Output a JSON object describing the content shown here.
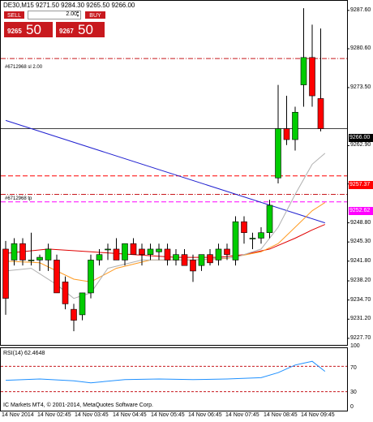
{
  "header": {
    "title": "DE30,M15  9271.50 9284.30 9265.50 9266.00"
  },
  "trade_panel": {
    "sell_label": "SELL",
    "buy_label": "BUY",
    "lot_value": "2.00",
    "sell_price_small": "9265",
    "sell_price_big": "50",
    "buy_price_small": "9267",
    "buy_price_big": "50",
    "button_color": "#c8191e"
  },
  "orders": {
    "sl_label": "#6712968 sl 2.00",
    "tp_label": "#6712968 tp"
  },
  "price_tags": {
    "current": "9266.00",
    "sl_level": "9257.37",
    "tp_level": "9252.62"
  },
  "chart_data": {
    "type": "candlestick",
    "title": "DE30,M15  9271.50 9284.30 9265.50 9266.00",
    "xlabel": "",
    "ylabel": "",
    "ylim": [
      9226.5,
      9289.5
    ],
    "grid": false,
    "bull_color": "#00cc00",
    "bear_color": "#ff0000",
    "y_ticks": [
      "9287.60",
      "9280.60",
      "9273.50",
      "9266.00",
      "9262.90",
      "9255.90",
      "9248.80",
      "9245.30",
      "9241.80",
      "9238.20",
      "9234.70",
      "9231.20",
      "9227.70"
    ],
    "x_ticks": [
      "14 Nov 2014",
      "14 Nov 02:45",
      "14 Nov 03:45",
      "14 Nov 04:45",
      "14 Nov 05:45",
      "14 Nov 06:45",
      "14 Nov 07:45",
      "14 Nov 08:45",
      "14 Nov 09:45"
    ],
    "candles": [
      {
        "o": 9244.0,
        "h": 9245.5,
        "l": 9232.0,
        "c": 9235.0
      },
      {
        "o": 9242.0,
        "h": 9246.0,
        "l": 9241.0,
        "c": 9245.0
      },
      {
        "o": 9245.0,
        "h": 9246.0,
        "l": 9241.0,
        "c": 9242.0
      },
      {
        "o": 9242.0,
        "h": 9247.0,
        "l": 9241.0,
        "c": 9242.0
      },
      {
        "o": 9242.0,
        "h": 9243.0,
        "l": 9240.0,
        "c": 9242.5
      },
      {
        "o": 9242.0,
        "h": 9245.0,
        "l": 9240.0,
        "c": 9244.0
      },
      {
        "o": 9242.0,
        "h": 9243.0,
        "l": 9236.0,
        "c": 9236.0
      },
      {
        "o": 9238.0,
        "h": 9239.0,
        "l": 9233.0,
        "c": 9234.0
      },
      {
        "o": 9233.0,
        "h": 9234.0,
        "l": 9229.0,
        "c": 9231.0
      },
      {
        "o": 9232.0,
        "h": 9236.0,
        "l": 9231.0,
        "c": 9236.0
      },
      {
        "o": 9236.0,
        "h": 9243.0,
        "l": 9235.0,
        "c": 9242.0
      },
      {
        "o": 9242.0,
        "h": 9244.0,
        "l": 9241.0,
        "c": 9243.0
      },
      {
        "o": 9244.0,
        "h": 9245.0,
        "l": 9242.0,
        "c": 9244.0
      },
      {
        "o": 9244.0,
        "h": 9246.0,
        "l": 9242.0,
        "c": 9242.0
      },
      {
        "o": 9242.0,
        "h": 9245.0,
        "l": 9241.0,
        "c": 9245.0
      },
      {
        "o": 9245.0,
        "h": 9246.0,
        "l": 9243.0,
        "c": 9243.0
      },
      {
        "o": 9244.0,
        "h": 9245.0,
        "l": 9241.0,
        "c": 9243.0
      },
      {
        "o": 9243.0,
        "h": 9245.0,
        "l": 9242.0,
        "c": 9244.0
      },
      {
        "o": 9243.5,
        "h": 9245.0,
        "l": 9242.0,
        "c": 9244.0
      },
      {
        "o": 9244.0,
        "h": 9245.0,
        "l": 9241.0,
        "c": 9242.0
      },
      {
        "o": 9242.0,
        "h": 9244.0,
        "l": 9241.0,
        "c": 9243.0
      },
      {
        "o": 9243.0,
        "h": 9244.0,
        "l": 9241.0,
        "c": 9241.0
      },
      {
        "o": 9242.0,
        "h": 9243.0,
        "l": 9238.0,
        "c": 9240.0
      },
      {
        "o": 9241.0,
        "h": 9243.0,
        "l": 9240.0,
        "c": 9243.0
      },
      {
        "o": 9243.0,
        "h": 9244.0,
        "l": 9241.0,
        "c": 9241.5
      },
      {
        "o": 9242.0,
        "h": 9245.0,
        "l": 9241.0,
        "c": 9244.0
      },
      {
        "o": 9244.0,
        "h": 9245.0,
        "l": 9242.0,
        "c": 9243.0
      },
      {
        "o": 9242.0,
        "h": 9250.0,
        "l": 9241.0,
        "c": 9249.0
      },
      {
        "o": 9249.0,
        "h": 9250.0,
        "l": 9245.0,
        "c": 9247.0
      },
      {
        "o": 9246.0,
        "h": 9247.0,
        "l": 9244.0,
        "c": 9246.0
      },
      {
        "o": 9246.0,
        "h": 9248.0,
        "l": 9245.0,
        "c": 9247.0
      },
      {
        "o": 9247.0,
        "h": 9253.0,
        "l": 9246.0,
        "c": 9252.0
      },
      {
        "o": 9257.0,
        "h": 9274.0,
        "l": 9256.0,
        "c": 9266.0
      },
      {
        "o": 9266.0,
        "h": 9272.0,
        "l": 9263.0,
        "c": 9264.0
      },
      {
        "o": 9264.0,
        "h": 9270.0,
        "l": 9262.0,
        "c": 9269.0
      },
      {
        "o": 9274.0,
        "h": 9288.0,
        "l": 9270.0,
        "c": 9279.0
      },
      {
        "o": 9279.0,
        "h": 9285.0,
        "l": 9270.0,
        "c": 9272.0
      },
      {
        "o": 9271.5,
        "h": 9284.3,
        "l": 9265.5,
        "c": 9266.0
      }
    ],
    "lines": [
      {
        "name": "blue-ma",
        "color": "#2020d0",
        "points": [
          [
            0,
            9267.5
          ],
          [
            37.5,
            9248.8
          ]
        ]
      },
      {
        "name": "red-ma",
        "color": "#e00000",
        "points": [
          [
            0,
            9243.2
          ],
          [
            5,
            9244.0
          ],
          [
            10,
            9243.5
          ],
          [
            15,
            9243.0
          ],
          [
            20,
            9242.5
          ],
          [
            25,
            9242.5
          ],
          [
            28,
            9243.0
          ],
          [
            31,
            9244.0
          ],
          [
            34,
            9246.0
          ],
          [
            36,
            9247.5
          ],
          [
            37.5,
            9248.5
          ]
        ]
      },
      {
        "name": "orange-ma",
        "color": "#ff9a20",
        "points": [
          [
            0,
            9241.8
          ],
          [
            4,
            9241.5
          ],
          [
            8,
            9238.5
          ],
          [
            10,
            9238.0
          ],
          [
            13,
            9240.5
          ],
          [
            17,
            9242.0
          ],
          [
            22,
            9242.0
          ],
          [
            26,
            9242.3
          ],
          [
            30,
            9243.5
          ],
          [
            32,
            9245.0
          ],
          [
            34,
            9248.0
          ],
          [
            36,
            9251.0
          ],
          [
            37.5,
            9252.5
          ]
        ]
      },
      {
        "name": "gray-ma",
        "color": "#b0b0b0",
        "points": [
          [
            0,
            9240.0
          ],
          [
            3,
            9240.5
          ],
          [
            6,
            9237.5
          ],
          [
            8,
            9235.0
          ],
          [
            10,
            9236.0
          ],
          [
            12,
            9240.5
          ],
          [
            16,
            9242.0
          ],
          [
            22,
            9242.0
          ],
          [
            27,
            9242.5
          ],
          [
            30,
            9244.0
          ],
          [
            32,
            9248.0
          ],
          [
            34,
            9254.0
          ],
          [
            36,
            9259.5
          ],
          [
            37.5,
            9261.5
          ]
        ]
      }
    ],
    "levels": [
      {
        "name": "sl-line",
        "value": 9278.8,
        "color": "#c8191e",
        "style": "dashdot"
      },
      {
        "name": "tp-line",
        "value": 9254.0,
        "color": "#c8191e",
        "style": "dashdot"
      },
      {
        "name": "current-price-line",
        "value": 9266.0,
        "color": "#000000",
        "style": "solid"
      },
      {
        "name": "sl-price-line",
        "value": 9257.37,
        "color": "#ff0000",
        "style": "dashed"
      },
      {
        "name": "tp-price-line",
        "value": 9252.62,
        "color": "#ff00ff",
        "style": "dashed"
      }
    ]
  },
  "rsi": {
    "title": "RSI(14) 62.4648",
    "scale_labels": [
      "100",
      "70",
      "30",
      "0"
    ],
    "range": [
      0,
      100
    ],
    "upper_level": 70,
    "lower_level": 30,
    "values": [
      [
        0,
        48
      ],
      [
        4,
        50
      ],
      [
        8,
        47
      ],
      [
        10,
        44
      ],
      [
        14,
        49
      ],
      [
        18,
        50
      ],
      [
        22,
        49
      ],
      [
        26,
        50
      ],
      [
        30,
        52
      ],
      [
        32,
        60
      ],
      [
        34,
        72
      ],
      [
        35,
        75
      ],
      [
        36,
        78
      ],
      [
        37.5,
        62
      ]
    ]
  },
  "footer": {
    "copyright": "IC Markets MT4, © 2001-2014, MetaQuotes Software Corp."
  }
}
